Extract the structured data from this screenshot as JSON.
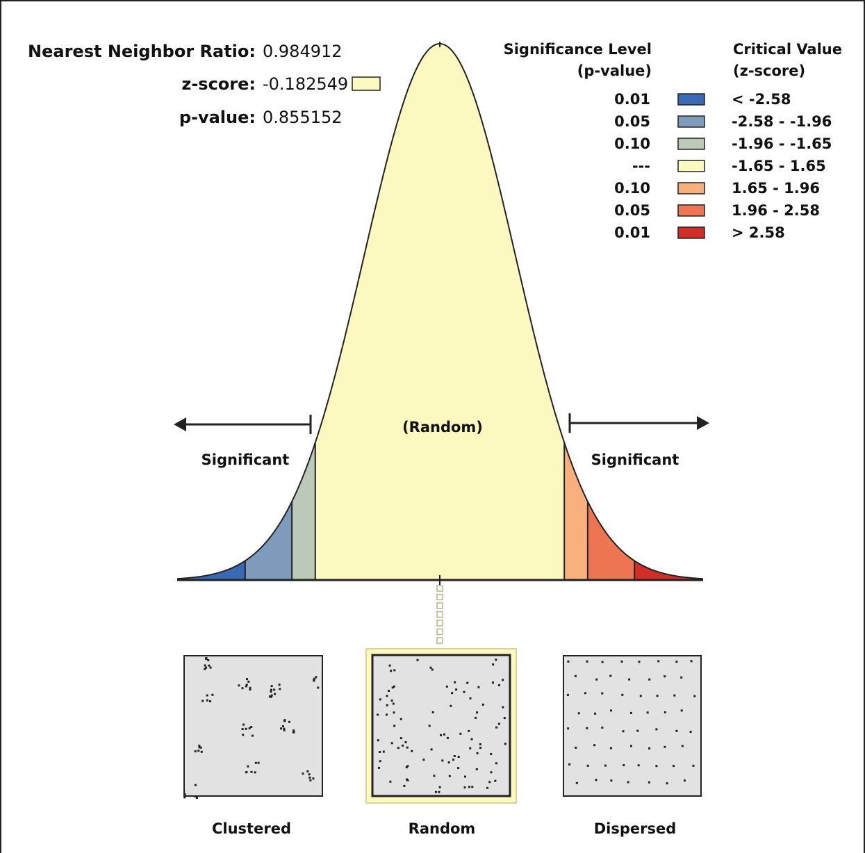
{
  "stats": {
    "nnr_label": "Nearest Neighbor Ratio:",
    "nnr_value": "0.984912",
    "z_label": "z-score:",
    "z_value": "-0.182549",
    "p_label": "p-value:",
    "p_value": "0.855152",
    "z_swatch_color": "#FBF8C0"
  },
  "legend": {
    "sig_header_1": "Significance Level",
    "sig_header_2": "(p-value)",
    "crit_header_1": "Critical Value",
    "crit_header_2": "(z-score)",
    "rows": [
      {
        "p": "0.01",
        "color": "#3A6AB4",
        "range": "< -2.58"
      },
      {
        "p": "0.05",
        "color": "#7F9BBC",
        "range": "-2.58 - -1.96"
      },
      {
        "p": "0.10",
        "color": "#BCC8B8",
        "range": "-1.96 - -1.65"
      },
      {
        "p": "---",
        "color": "#FBF8C0",
        "range": "-1.65 - 1.65"
      },
      {
        "p": "0.10",
        "color": "#F7B07E",
        "range": "1.65 - 1.96"
      },
      {
        "p": "0.05",
        "color": "#EE7551",
        "range": "1.96 - 2.58"
      },
      {
        "p": "0.01",
        "color": "#D32D27",
        "range": "> 2.58"
      }
    ]
  },
  "curve": {
    "random_label": "(Random)",
    "significant_left": "Significant",
    "significant_right": "Significant",
    "center_z": -0.182549
  },
  "patterns": {
    "clustered_label": "Clustered",
    "random_label": "Random",
    "dispersed_label": "Dispersed",
    "selected": "Random"
  }
}
